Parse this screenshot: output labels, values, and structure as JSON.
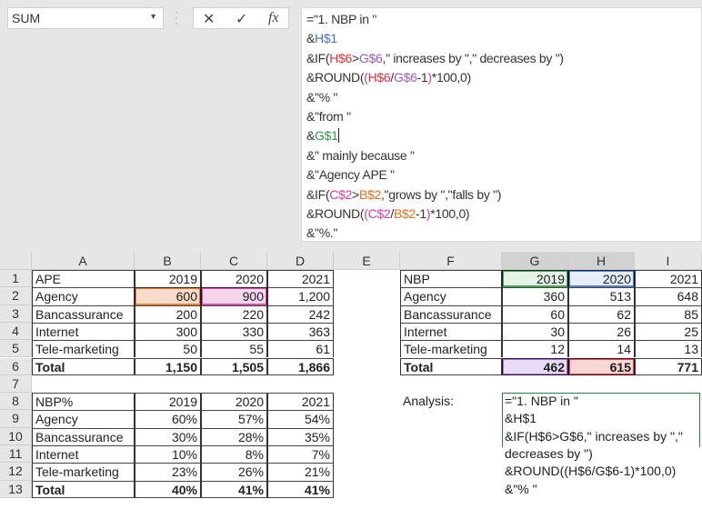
{
  "name_box": {
    "value": "SUM"
  },
  "formula_bar": {
    "cancel_icon": "✕",
    "enter_icon": "✓",
    "fx_icon": "fx",
    "lines": [
      [
        [
          "=\"1. NBP in \"",
          ""
        ]
      ],
      [
        [
          "&",
          ""
        ],
        [
          "H$1",
          "cb"
        ]
      ],
      [
        [
          "&IF(",
          ""
        ],
        [
          "H$6",
          "cr"
        ],
        [
          ">",
          ""
        ],
        [
          "G$6",
          "cp"
        ],
        [
          ",\" increases by \",\" decreases by \")",
          ""
        ]
      ],
      [
        [
          "&ROUND(",
          ""
        ],
        [
          "(",
          "cm"
        ],
        [
          "H$6",
          "cr"
        ],
        [
          "/",
          ""
        ],
        [
          "G$6",
          "cp"
        ],
        [
          "-1",
          ""
        ],
        [
          ")",
          "cm"
        ],
        [
          "*100,0)",
          ""
        ]
      ],
      [
        [
          "&\"% \"",
          ""
        ]
      ],
      [
        [
          "&\"from \"",
          ""
        ]
      ],
      [
        [
          "&",
          ""
        ],
        [
          "G$1",
          "cg"
        ]
      ],
      [
        [
          "&\" mainly because \"",
          ""
        ]
      ],
      [
        [
          "&\"Agency APE \"",
          ""
        ]
      ],
      [
        [
          "&IF(",
          ""
        ],
        [
          "C$2",
          "cm"
        ],
        [
          ">",
          ""
        ],
        [
          "B$2",
          "co"
        ],
        [
          ",\"grows by \",\"falls by \")",
          ""
        ]
      ],
      [
        [
          "&ROUND(",
          ""
        ],
        [
          "(",
          "cm"
        ],
        [
          "C$2",
          "cm"
        ],
        [
          "/",
          ""
        ],
        [
          "B$2",
          "co"
        ],
        [
          "-1",
          ""
        ],
        [
          ")",
          "cm"
        ],
        [
          "*100,0)",
          ""
        ]
      ],
      [
        [
          "&\"%.\"",
          ""
        ]
      ]
    ]
  },
  "columns": [
    "A",
    "B",
    "C",
    "D",
    "E",
    "F",
    "G",
    "H",
    "I"
  ],
  "rows": [
    "1",
    "2",
    "3",
    "4",
    "5",
    "6",
    "7",
    "8",
    "9",
    "10",
    "11",
    "12",
    "13"
  ],
  "ape_table": {
    "header": [
      "APE",
      "2019",
      "2020",
      "2021"
    ],
    "rows": [
      [
        "Agency",
        "600",
        "900",
        "1,200"
      ],
      [
        "Bancassurance",
        "200",
        "220",
        "242"
      ],
      [
        "Internet",
        "300",
        "330",
        "363"
      ],
      [
        "Tele-marketing",
        "50",
        "55",
        "61"
      ]
    ],
    "total": [
      "Total",
      "1,150",
      "1,505",
      "1,866"
    ]
  },
  "nbp_table": {
    "header": [
      "NBP",
      "2019",
      "2020",
      "2021"
    ],
    "rows": [
      [
        "Agency",
        "360",
        "513",
        "648"
      ],
      [
        "Bancassurance",
        "60",
        "62",
        "85"
      ],
      [
        "Internet",
        "30",
        "26",
        "25"
      ],
      [
        "Tele-marketing",
        "12",
        "14",
        "13"
      ]
    ],
    "total": [
      "Total",
      "462",
      "615",
      "771"
    ]
  },
  "nbp_pct_table": {
    "header": [
      "NBP%",
      "2019",
      "2020",
      "2021"
    ],
    "rows": [
      [
        "Agency",
        "60%",
        "57%",
        "54%"
      ],
      [
        "Bancassurance",
        "30%",
        "28%",
        "35%"
      ],
      [
        "Internet",
        "10%",
        "8%",
        "7%"
      ],
      [
        "Tele-marketing",
        "23%",
        "26%",
        "21%"
      ]
    ],
    "total": [
      "Total",
      "40%",
      "41%",
      "41%"
    ]
  },
  "analysis": {
    "label": "Analysis:",
    "edit_lines": [
      "=\"1. NBP in \"",
      "&H$1",
      "&IF(H$6>G$6,\" increases by \",\"",
      "decreases by \")",
      "&ROUND((H$6/G$6-1)*100,0)",
      "&\"% \""
    ]
  }
}
